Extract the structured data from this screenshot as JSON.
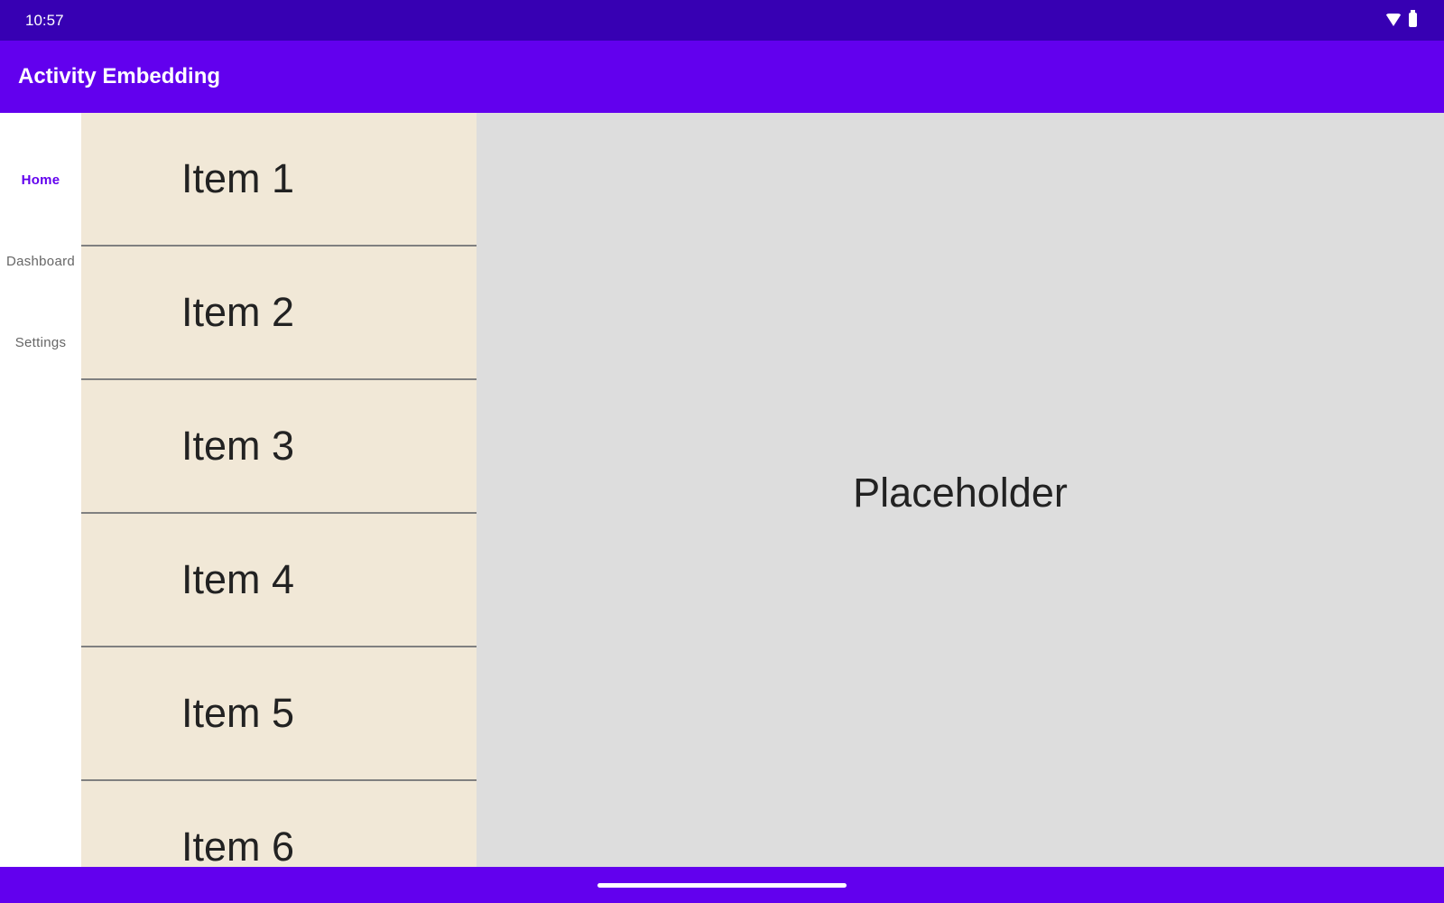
{
  "status_bar": {
    "time": "10:57",
    "icons": [
      "wifi-icon",
      "battery-icon"
    ]
  },
  "app_bar": {
    "title": "Activity Embedding"
  },
  "nav_rail": {
    "items": [
      {
        "label": "Home",
        "active": true
      },
      {
        "label": "Dashboard",
        "active": false
      },
      {
        "label": "Settings",
        "active": false
      }
    ]
  },
  "list": {
    "items": [
      "Item 1",
      "Item 2",
      "Item 3",
      "Item 4",
      "Item 5",
      "Item 6"
    ]
  },
  "detail": {
    "placeholder": "Placeholder"
  },
  "colors": {
    "primary": "#6200ee",
    "status_bar": "#3700b3",
    "list_bg": "#f1e8d7",
    "detail_bg": "#dddddd"
  }
}
